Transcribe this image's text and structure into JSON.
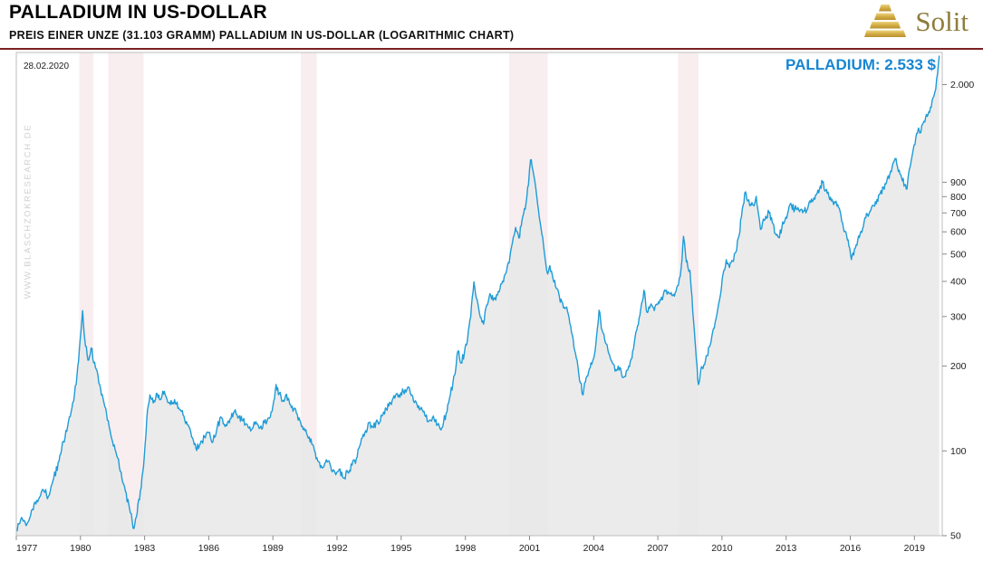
{
  "header": {
    "title": "PALLADIUM IN US-DOLLAR",
    "subtitle": "PREIS EINER UNZE (31.103 GRAMM) PALLADIUM IN US-DOLLAR (LOGARITHMIC CHART)",
    "brand": "Solit"
  },
  "annotations": {
    "date_label": "28.02.2020",
    "price_label": "PALLADIUM: 2.533 $",
    "watermark": "WWW.BLASCHZOKRESEARCH.DE"
  },
  "colors": {
    "line": "#1e9cd7",
    "area": "#e8e8e8",
    "band": "#f8edef",
    "price_label": "#1686d3",
    "header_rule": "#7a2022",
    "brand_gold": "#8f7c3d",
    "axis_text": "#222222",
    "border": "#bdbdbd",
    "watermark": "#cfcfcf"
  },
  "chart_data": {
    "type": "line",
    "title": "PALLADIUM IN US-DOLLAR",
    "subtitle": "PREIS EINER UNZE (31.103 GRAMM) PALLADIUM IN US-DOLLAR (LOGARITHMIC CHART)",
    "y_scale": "log",
    "grid": false,
    "legend": "none",
    "x_range": [
      1977.0,
      2020.3
    ],
    "y_range": [
      50,
      2600
    ],
    "last_value": 2533,
    "last_date": "28.02.2020",
    "unit": "USD per ounce (31.103 g)",
    "y_ticks": [
      {
        "v": 2000,
        "label": "2.000"
      },
      {
        "v": 900,
        "label": "900"
      },
      {
        "v": 800,
        "label": "800"
      },
      {
        "v": 700,
        "label": "700"
      },
      {
        "v": 600,
        "label": "600"
      },
      {
        "v": 500,
        "label": "500"
      },
      {
        "v": 400,
        "label": "400"
      },
      {
        "v": 300,
        "label": "300"
      },
      {
        "v": 200,
        "label": "200"
      },
      {
        "v": 100,
        "label": "100"
      },
      {
        "v": 50,
        "label": "50"
      }
    ],
    "x_ticks": [
      {
        "v": 1977,
        "label": "1977"
      },
      {
        "v": 1980,
        "label": "1980"
      },
      {
        "v": 1983,
        "label": "1983"
      },
      {
        "v": 1986,
        "label": "1986"
      },
      {
        "v": 1989,
        "label": "1989"
      },
      {
        "v": 1992,
        "label": "1992"
      },
      {
        "v": 1995,
        "label": "1995"
      },
      {
        "v": 1998,
        "label": "1998"
      },
      {
        "v": 2001,
        "label": "2001"
      },
      {
        "v": 2004,
        "label": "2004"
      },
      {
        "v": 2007,
        "label": "2007"
      },
      {
        "v": 2010,
        "label": "2010"
      },
      {
        "v": 2013,
        "label": "2013"
      },
      {
        "v": 2016,
        "label": "2016"
      },
      {
        "v": 2019,
        "label": "2019"
      }
    ],
    "recessions": [
      [
        1979.95,
        1980.6
      ],
      [
        1981.3,
        1982.95
      ],
      [
        1990.3,
        1991.05
      ],
      [
        2000.05,
        2001.85
      ],
      [
        2007.95,
        2008.9
      ]
    ],
    "series": [
      {
        "name": "Palladium (USD/oz)",
        "points": [
          [
            1977.0,
            52
          ],
          [
            1977.25,
            58
          ],
          [
            1977.5,
            55
          ],
          [
            1977.75,
            62
          ],
          [
            1978.0,
            66
          ],
          [
            1978.25,
            73
          ],
          [
            1978.5,
            69
          ],
          [
            1978.75,
            80
          ],
          [
            1979.0,
            92
          ],
          [
            1979.2,
            108
          ],
          [
            1979.4,
            122
          ],
          [
            1979.6,
            142
          ],
          [
            1979.8,
            172
          ],
          [
            1979.95,
            230
          ],
          [
            1980.1,
            315
          ],
          [
            1980.2,
            250
          ],
          [
            1980.35,
            210
          ],
          [
            1980.5,
            232
          ],
          [
            1980.7,
            198
          ],
          [
            1980.9,
            172
          ],
          [
            1981.1,
            148
          ],
          [
            1981.3,
            128
          ],
          [
            1981.5,
            108
          ],
          [
            1981.7,
            96
          ],
          [
            1981.9,
            84
          ],
          [
            1982.1,
            72
          ],
          [
            1982.3,
            62
          ],
          [
            1982.5,
            53
          ],
          [
            1982.65,
            60
          ],
          [
            1982.8,
            72
          ],
          [
            1982.95,
            88
          ],
          [
            1983.1,
            130
          ],
          [
            1983.25,
            158
          ],
          [
            1983.4,
            148
          ],
          [
            1983.55,
            160
          ],
          [
            1983.7,
            152
          ],
          [
            1983.85,
            163
          ],
          [
            1984.0,
            156
          ],
          [
            1984.2,
            146
          ],
          [
            1984.4,
            152
          ],
          [
            1984.6,
            142
          ],
          [
            1984.8,
            134
          ],
          [
            1985.0,
            124
          ],
          [
            1985.2,
            112
          ],
          [
            1985.4,
            102
          ],
          [
            1985.6,
            106
          ],
          [
            1985.8,
            112
          ],
          [
            1986.0,
            116
          ],
          [
            1986.2,
            108
          ],
          [
            1986.4,
            122
          ],
          [
            1986.6,
            131
          ],
          [
            1986.8,
            124
          ],
          [
            1987.0,
            130
          ],
          [
            1987.2,
            138
          ],
          [
            1987.4,
            132
          ],
          [
            1987.6,
            128
          ],
          [
            1987.8,
            124
          ],
          [
            1988.0,
            119
          ],
          [
            1988.2,
            127
          ],
          [
            1988.4,
            121
          ],
          [
            1988.6,
            126
          ],
          [
            1988.8,
            131
          ],
          [
            1989.0,
            144
          ],
          [
            1989.15,
            172
          ],
          [
            1989.3,
            160
          ],
          [
            1989.45,
            150
          ],
          [
            1989.6,
            158
          ],
          [
            1989.75,
            152
          ],
          [
            1989.9,
            144
          ],
          [
            1990.1,
            136
          ],
          [
            1990.3,
            126
          ],
          [
            1990.5,
            118
          ],
          [
            1990.7,
            112
          ],
          [
            1990.9,
            104
          ],
          [
            1991.1,
            92
          ],
          [
            1991.3,
            87
          ],
          [
            1991.5,
            93
          ],
          [
            1991.7,
            88
          ],
          [
            1991.9,
            84
          ],
          [
            1992.1,
            86
          ],
          [
            1992.3,
            80
          ],
          [
            1992.5,
            84
          ],
          [
            1992.7,
            89
          ],
          [
            1992.9,
            94
          ],
          [
            1993.1,
            106
          ],
          [
            1993.3,
            116
          ],
          [
            1993.5,
            126
          ],
          [
            1993.7,
            121
          ],
          [
            1993.9,
            127
          ],
          [
            1994.1,
            133
          ],
          [
            1994.3,
            141
          ],
          [
            1994.5,
            148
          ],
          [
            1994.7,
            154
          ],
          [
            1994.9,
            158
          ],
          [
            1995.1,
            163
          ],
          [
            1995.3,
            168
          ],
          [
            1995.5,
            158
          ],
          [
            1995.7,
            149
          ],
          [
            1995.9,
            141
          ],
          [
            1996.1,
            134
          ],
          [
            1996.3,
            128
          ],
          [
            1996.5,
            133
          ],
          [
            1996.7,
            124
          ],
          [
            1996.9,
            121
          ],
          [
            1997.1,
            136
          ],
          [
            1997.3,
            158
          ],
          [
            1997.5,
            186
          ],
          [
            1997.65,
            226
          ],
          [
            1997.8,
            205
          ],
          [
            1997.95,
            222
          ],
          [
            1998.1,
            248
          ],
          [
            1998.25,
            300
          ],
          [
            1998.4,
            398
          ],
          [
            1998.55,
            345
          ],
          [
            1998.7,
            298
          ],
          [
            1998.85,
            282
          ],
          [
            1999.0,
            330
          ],
          [
            1999.15,
            362
          ],
          [
            1999.3,
            342
          ],
          [
            1999.5,
            358
          ],
          [
            1999.7,
            392
          ],
          [
            1999.9,
            428
          ],
          [
            2000.05,
            465
          ],
          [
            2000.2,
            548
          ],
          [
            2000.35,
            622
          ],
          [
            2000.5,
            570
          ],
          [
            2000.65,
            660
          ],
          [
            2000.8,
            722
          ],
          [
            2000.95,
            880
          ],
          [
            2001.05,
            1080
          ],
          [
            2001.15,
            1000
          ],
          [
            2001.25,
            905
          ],
          [
            2001.35,
            790
          ],
          [
            2001.45,
            680
          ],
          [
            2001.55,
            610
          ],
          [
            2001.65,
            540
          ],
          [
            2001.75,
            468
          ],
          [
            2001.85,
            425
          ],
          [
            2001.95,
            455
          ],
          [
            2002.1,
            408
          ],
          [
            2002.25,
            378
          ],
          [
            2002.4,
            352
          ],
          [
            2002.55,
            334
          ],
          [
            2002.7,
            322
          ],
          [
            2002.85,
            298
          ],
          [
            2003.0,
            258
          ],
          [
            2003.15,
            222
          ],
          [
            2003.3,
            188
          ],
          [
            2003.5,
            158
          ],
          [
            2003.65,
            182
          ],
          [
            2003.8,
            196
          ],
          [
            2003.95,
            208
          ],
          [
            2004.1,
            238
          ],
          [
            2004.25,
            316
          ],
          [
            2004.4,
            268
          ],
          [
            2004.55,
            242
          ],
          [
            2004.7,
            222
          ],
          [
            2004.85,
            208
          ],
          [
            2005.0,
            192
          ],
          [
            2005.15,
            200
          ],
          [
            2005.3,
            188
          ],
          [
            2005.45,
            184
          ],
          [
            2005.6,
            194
          ],
          [
            2005.75,
            212
          ],
          [
            2005.9,
            242
          ],
          [
            2006.05,
            278
          ],
          [
            2006.2,
            318
          ],
          [
            2006.35,
            372
          ],
          [
            2006.5,
            310
          ],
          [
            2006.65,
            328
          ],
          [
            2006.8,
            322
          ],
          [
            2006.95,
            332
          ],
          [
            2007.1,
            344
          ],
          [
            2007.25,
            356
          ],
          [
            2007.4,
            372
          ],
          [
            2007.55,
            362
          ],
          [
            2007.7,
            356
          ],
          [
            2007.85,
            368
          ],
          [
            2008.0,
            408
          ],
          [
            2008.1,
            452
          ],
          [
            2008.2,
            578
          ],
          [
            2008.3,
            492
          ],
          [
            2008.4,
            452
          ],
          [
            2008.5,
            438
          ],
          [
            2008.6,
            352
          ],
          [
            2008.7,
            272
          ],
          [
            2008.8,
            212
          ],
          [
            2008.9,
            172
          ],
          [
            2009.0,
            192
          ],
          [
            2009.15,
            202
          ],
          [
            2009.3,
            218
          ],
          [
            2009.45,
            238
          ],
          [
            2009.6,
            272
          ],
          [
            2009.75,
            302
          ],
          [
            2009.9,
            348
          ],
          [
            2010.05,
            425
          ],
          [
            2010.2,
            478
          ],
          [
            2010.35,
            448
          ],
          [
            2010.5,
            472
          ],
          [
            2010.65,
            508
          ],
          [
            2010.8,
            582
          ],
          [
            2010.95,
            722
          ],
          [
            2011.1,
            832
          ],
          [
            2011.2,
            772
          ],
          [
            2011.3,
            742
          ],
          [
            2011.4,
            762
          ],
          [
            2011.5,
            742
          ],
          [
            2011.6,
            802
          ],
          [
            2011.7,
            702
          ],
          [
            2011.8,
            612
          ],
          [
            2011.9,
            648
          ],
          [
            2012.05,
            682
          ],
          [
            2012.2,
            702
          ],
          [
            2012.35,
            648
          ],
          [
            2012.5,
            592
          ],
          [
            2012.65,
            572
          ],
          [
            2012.8,
            622
          ],
          [
            2012.95,
            662
          ],
          [
            2013.1,
            712
          ],
          [
            2013.25,
            748
          ],
          [
            2013.4,
            718
          ],
          [
            2013.55,
            732
          ],
          [
            2013.7,
            722
          ],
          [
            2013.85,
            712
          ],
          [
            2014.0,
            722
          ],
          [
            2014.15,
            762
          ],
          [
            2014.3,
            792
          ],
          [
            2014.45,
            822
          ],
          [
            2014.6,
            872
          ],
          [
            2014.7,
            898
          ],
          [
            2014.85,
            842
          ],
          [
            2015.0,
            802
          ],
          [
            2015.15,
            782
          ],
          [
            2015.3,
            762
          ],
          [
            2015.45,
            732
          ],
          [
            2015.6,
            652
          ],
          [
            2015.75,
            602
          ],
          [
            2015.9,
            562
          ],
          [
            2016.05,
            478
          ],
          [
            2016.2,
            522
          ],
          [
            2016.35,
            562
          ],
          [
            2016.5,
            602
          ],
          [
            2016.65,
            652
          ],
          [
            2016.8,
            692
          ],
          [
            2016.95,
            712
          ],
          [
            2017.1,
            742
          ],
          [
            2017.25,
            782
          ],
          [
            2017.4,
            822
          ],
          [
            2017.55,
            862
          ],
          [
            2017.7,
            902
          ],
          [
            2017.85,
            962
          ],
          [
            2018.0,
            1052
          ],
          [
            2018.1,
            1092
          ],
          [
            2018.25,
            982
          ],
          [
            2018.4,
            932
          ],
          [
            2018.55,
            882
          ],
          [
            2018.65,
            852
          ],
          [
            2018.8,
            1022
          ],
          [
            2018.95,
            1182
          ],
          [
            2019.1,
            1342
          ],
          [
            2019.2,
            1402
          ],
          [
            2019.3,
            1352
          ],
          [
            2019.45,
            1482
          ],
          [
            2019.6,
            1542
          ],
          [
            2019.75,
            1662
          ],
          [
            2019.9,
            1812
          ],
          [
            2020.0,
            1932
          ],
          [
            2020.08,
            2182
          ],
          [
            2020.16,
            2533
          ]
        ]
      }
    ]
  }
}
